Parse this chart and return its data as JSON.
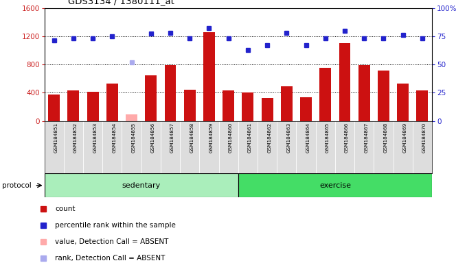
{
  "title": "GDS3134 / 1380111_at",
  "samples": [
    "GSM184851",
    "GSM184852",
    "GSM184853",
    "GSM184854",
    "GSM184855",
    "GSM184856",
    "GSM184857",
    "GSM184858",
    "GSM184859",
    "GSM184860",
    "GSM184861",
    "GSM184862",
    "GSM184863",
    "GSM184864",
    "GSM184865",
    "GSM184866",
    "GSM184867",
    "GSM184868",
    "GSM184869",
    "GSM184870"
  ],
  "bar_values": [
    370,
    430,
    410,
    530,
    90,
    650,
    790,
    440,
    1260,
    430,
    400,
    330,
    490,
    340,
    750,
    1100,
    790,
    710,
    530,
    430
  ],
  "bar_absent": [
    false,
    false,
    false,
    false,
    true,
    false,
    false,
    false,
    false,
    false,
    false,
    false,
    false,
    false,
    false,
    false,
    false,
    false,
    false,
    false
  ],
  "dot_values": [
    71,
    73,
    73,
    75,
    52,
    77,
    78,
    73,
    82,
    73,
    63,
    67,
    78,
    67,
    73,
    80,
    73,
    73,
    76,
    73
  ],
  "dot_absent": [
    false,
    false,
    false,
    false,
    true,
    false,
    false,
    false,
    false,
    false,
    false,
    false,
    false,
    false,
    false,
    false,
    false,
    false,
    false,
    false
  ],
  "sedentary_count": 10,
  "exercise_count": 10,
  "ylim_left": [
    0,
    1600
  ],
  "ylim_right": [
    0,
    100
  ],
  "yticks_left": [
    0,
    400,
    800,
    1200,
    1600
  ],
  "yticks_right": [
    0,
    25,
    50,
    75,
    100
  ],
  "bar_color_normal": "#cc1111",
  "bar_color_absent": "#ffaaaa",
  "dot_color_normal": "#2222cc",
  "dot_color_absent": "#aaaaee",
  "sedentary_color": "#aaeebb",
  "exercise_color": "#44dd66",
  "bg_color": "#dddddd",
  "grid_color": "#000000"
}
